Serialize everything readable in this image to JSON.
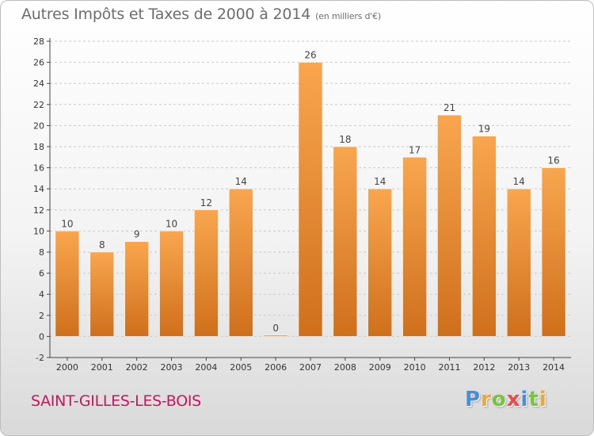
{
  "title": "Autres Impôts et Taxes de 2000 à 2014",
  "unit": "(en milliers d'€)",
  "place": "SAINT-GILLES-LES-BOIS",
  "logo": {
    "text": "Proxiti",
    "colors": [
      "#4a8fd6",
      "#e8a93a",
      "#7cc242",
      "#e84b4b",
      "#4a8fd6",
      "#7cc242",
      "#e8a93a"
    ]
  },
  "colors": {
    "bar_top": "#f9a64f",
    "bar_bottom": "#cf6f1c",
    "grid": "#c9c9c9",
    "axis": "#444444"
  },
  "chart_data": {
    "type": "bar",
    "categories": [
      "2000",
      "2001",
      "2002",
      "2003",
      "2004",
      "2005",
      "2006",
      "2007",
      "2008",
      "2009",
      "2010",
      "2011",
      "2012",
      "2013",
      "2014"
    ],
    "values": [
      10,
      8,
      9,
      10,
      12,
      14,
      0,
      26,
      18,
      14,
      17,
      21,
      19,
      14,
      16
    ],
    "data_labels": [
      "10",
      "8",
      "9",
      "10",
      "12",
      "14",
      "0",
      "26",
      "18",
      "14",
      "17",
      "21",
      "19",
      "14",
      "16"
    ],
    "title": "Autres Impôts et Taxes de 2000 à 2014",
    "xlabel": "",
    "ylabel": "",
    "ylim": [
      -2,
      28
    ],
    "yticks": [
      -2,
      0,
      2,
      4,
      6,
      8,
      10,
      12,
      14,
      16,
      18,
      20,
      22,
      24,
      26,
      28
    ],
    "ytick_labels": [
      "-2",
      "0",
      "2",
      "4",
      "6",
      "8",
      "10",
      "12",
      "14",
      "16",
      "18",
      "20",
      "22",
      "24",
      "26",
      "28"
    ],
    "grid": true,
    "legend": "none"
  }
}
